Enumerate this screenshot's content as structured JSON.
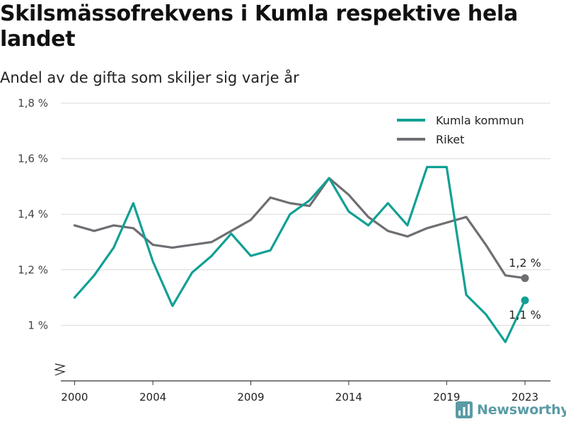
{
  "title": "Skilsmässofrekvens i Kumla respektive hela landet",
  "subtitle": "Andel av de gifta som skiljer sig varje år",
  "brand": "Newsworthy",
  "chart_data": {
    "type": "line",
    "x": [
      2000,
      2001,
      2002,
      2003,
      2004,
      2005,
      2006,
      2007,
      2008,
      2009,
      2010,
      2011,
      2012,
      2013,
      2014,
      2015,
      2016,
      2017,
      2018,
      2019,
      2020,
      2021,
      2022,
      2023
    ],
    "x_ticks": [
      "2000",
      "2004",
      "2009",
      "2014",
      "2019",
      "2023"
    ],
    "y_ticks": [
      "1 %",
      "1,2 %",
      "1,4 %",
      "1,6 %",
      "1,8 %"
    ],
    "y_tick_values": [
      1.0,
      1.2,
      1.4,
      1.6,
      1.8
    ],
    "ylim": [
      0.8,
      1.8
    ],
    "xlim": [
      1999.3,
      2024.3
    ],
    "grid": true,
    "legend_position": "top-right",
    "series": [
      {
        "name": "Kumla kommun",
        "color": "#11a094",
        "values": [
          1.1,
          1.18,
          1.28,
          1.44,
          1.23,
          1.07,
          1.19,
          1.25,
          1.33,
          1.25,
          1.27,
          1.4,
          1.45,
          1.53,
          1.41,
          1.36,
          1.44,
          1.36,
          1.57,
          1.57,
          1.11,
          1.04,
          0.94,
          1.09
        ],
        "end_label": "1,1 %"
      },
      {
        "name": "Riket",
        "color": "#6e6e73",
        "values": [
          1.36,
          1.34,
          1.36,
          1.35,
          1.29,
          1.28,
          1.29,
          1.3,
          1.34,
          1.38,
          1.46,
          1.44,
          1.43,
          1.53,
          1.47,
          1.39,
          1.34,
          1.32,
          1.35,
          1.37,
          1.39,
          1.29,
          1.18,
          1.17
        ],
        "end_label": "1,2 %"
      }
    ]
  }
}
